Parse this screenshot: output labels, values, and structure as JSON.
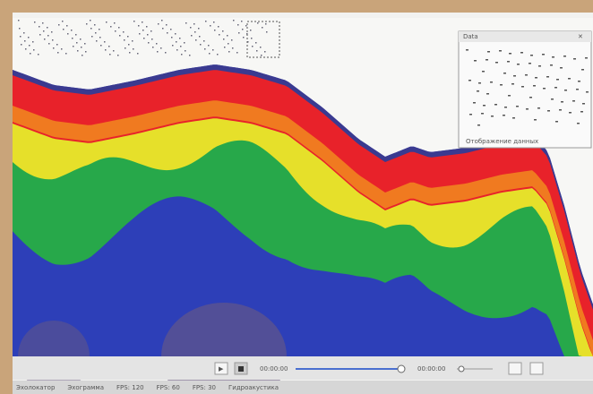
{
  "overlay_panel": {
    "title": "Data",
    "footer": "Отображение данных"
  },
  "playback": {
    "start_time": "00:00:00",
    "end_time": "00:00:00"
  },
  "status_bar": [
    "Эхолокатор",
    "Эхограмма",
    "FPS: 120",
    "FPS: 60",
    "FPS: 30",
    "Гидроакустика"
  ]
}
